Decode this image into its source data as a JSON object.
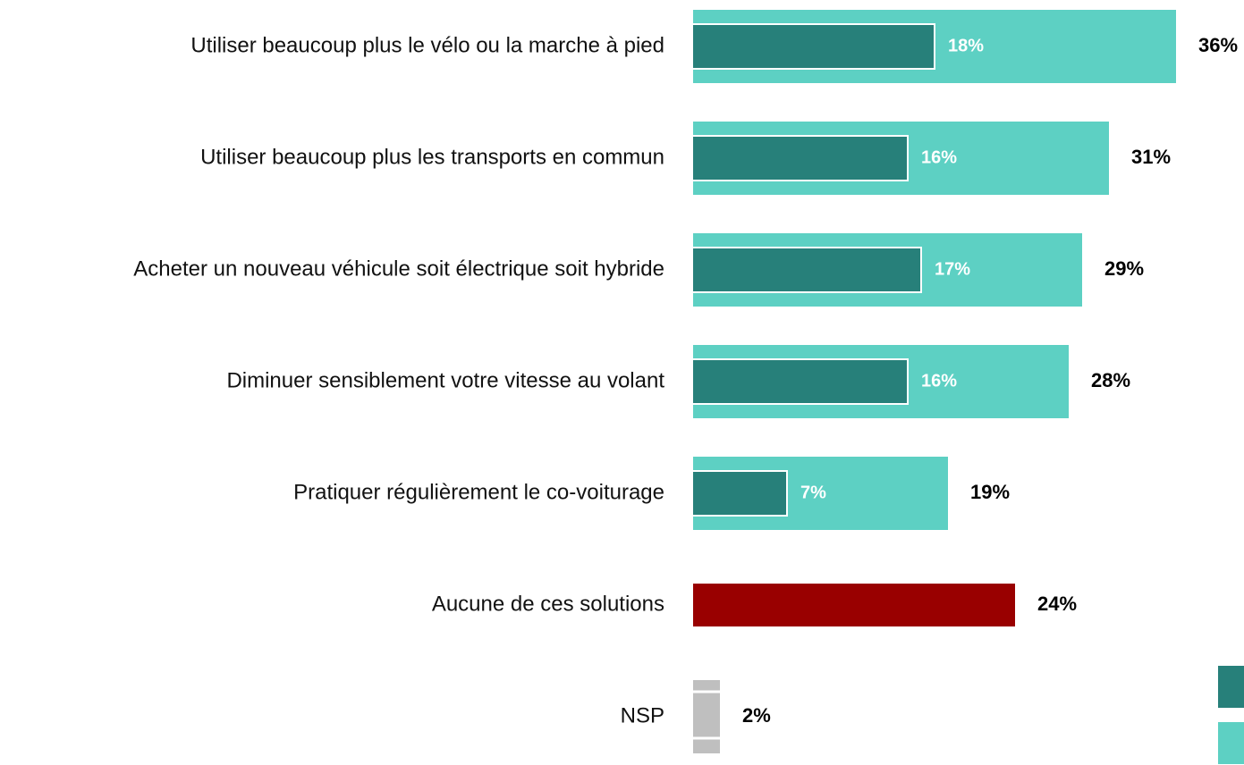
{
  "chart_data": {
    "type": "bar",
    "orientation": "horizontal",
    "categories": [
      "Utiliser beaucoup plus le vélo ou la marche à pied",
      "Utiliser beaucoup plus les transports en commun",
      "Acheter un nouveau véhicule soit électrique soit hybride",
      "Diminuer sensiblement votre vitesse au volant",
      "Pratiquer régulièrement le co-voiturage",
      "Aucune de ces solutions",
      "NSP"
    ],
    "series": [
      {
        "colors": [
          "#5dd0c3",
          "#5dd0c3",
          "#5dd0c3",
          "#5dd0c3",
          "#5dd0c3",
          "#990000",
          "#bfbfbf"
        ],
        "values": [
          36,
          31,
          29,
          28,
          19,
          24,
          2
        ],
        "value_labels": [
          "36%",
          "31%",
          "29%",
          "28%",
          "19%",
          "24%",
          "2%"
        ]
      },
      {
        "color": "#27807a",
        "values": [
          18,
          16,
          17,
          16,
          7,
          null,
          null
        ],
        "value_labels": [
          "18%",
          "16%",
          "17%",
          "16%",
          "7%",
          null,
          null
        ]
      }
    ],
    "legend": "right"
  }
}
